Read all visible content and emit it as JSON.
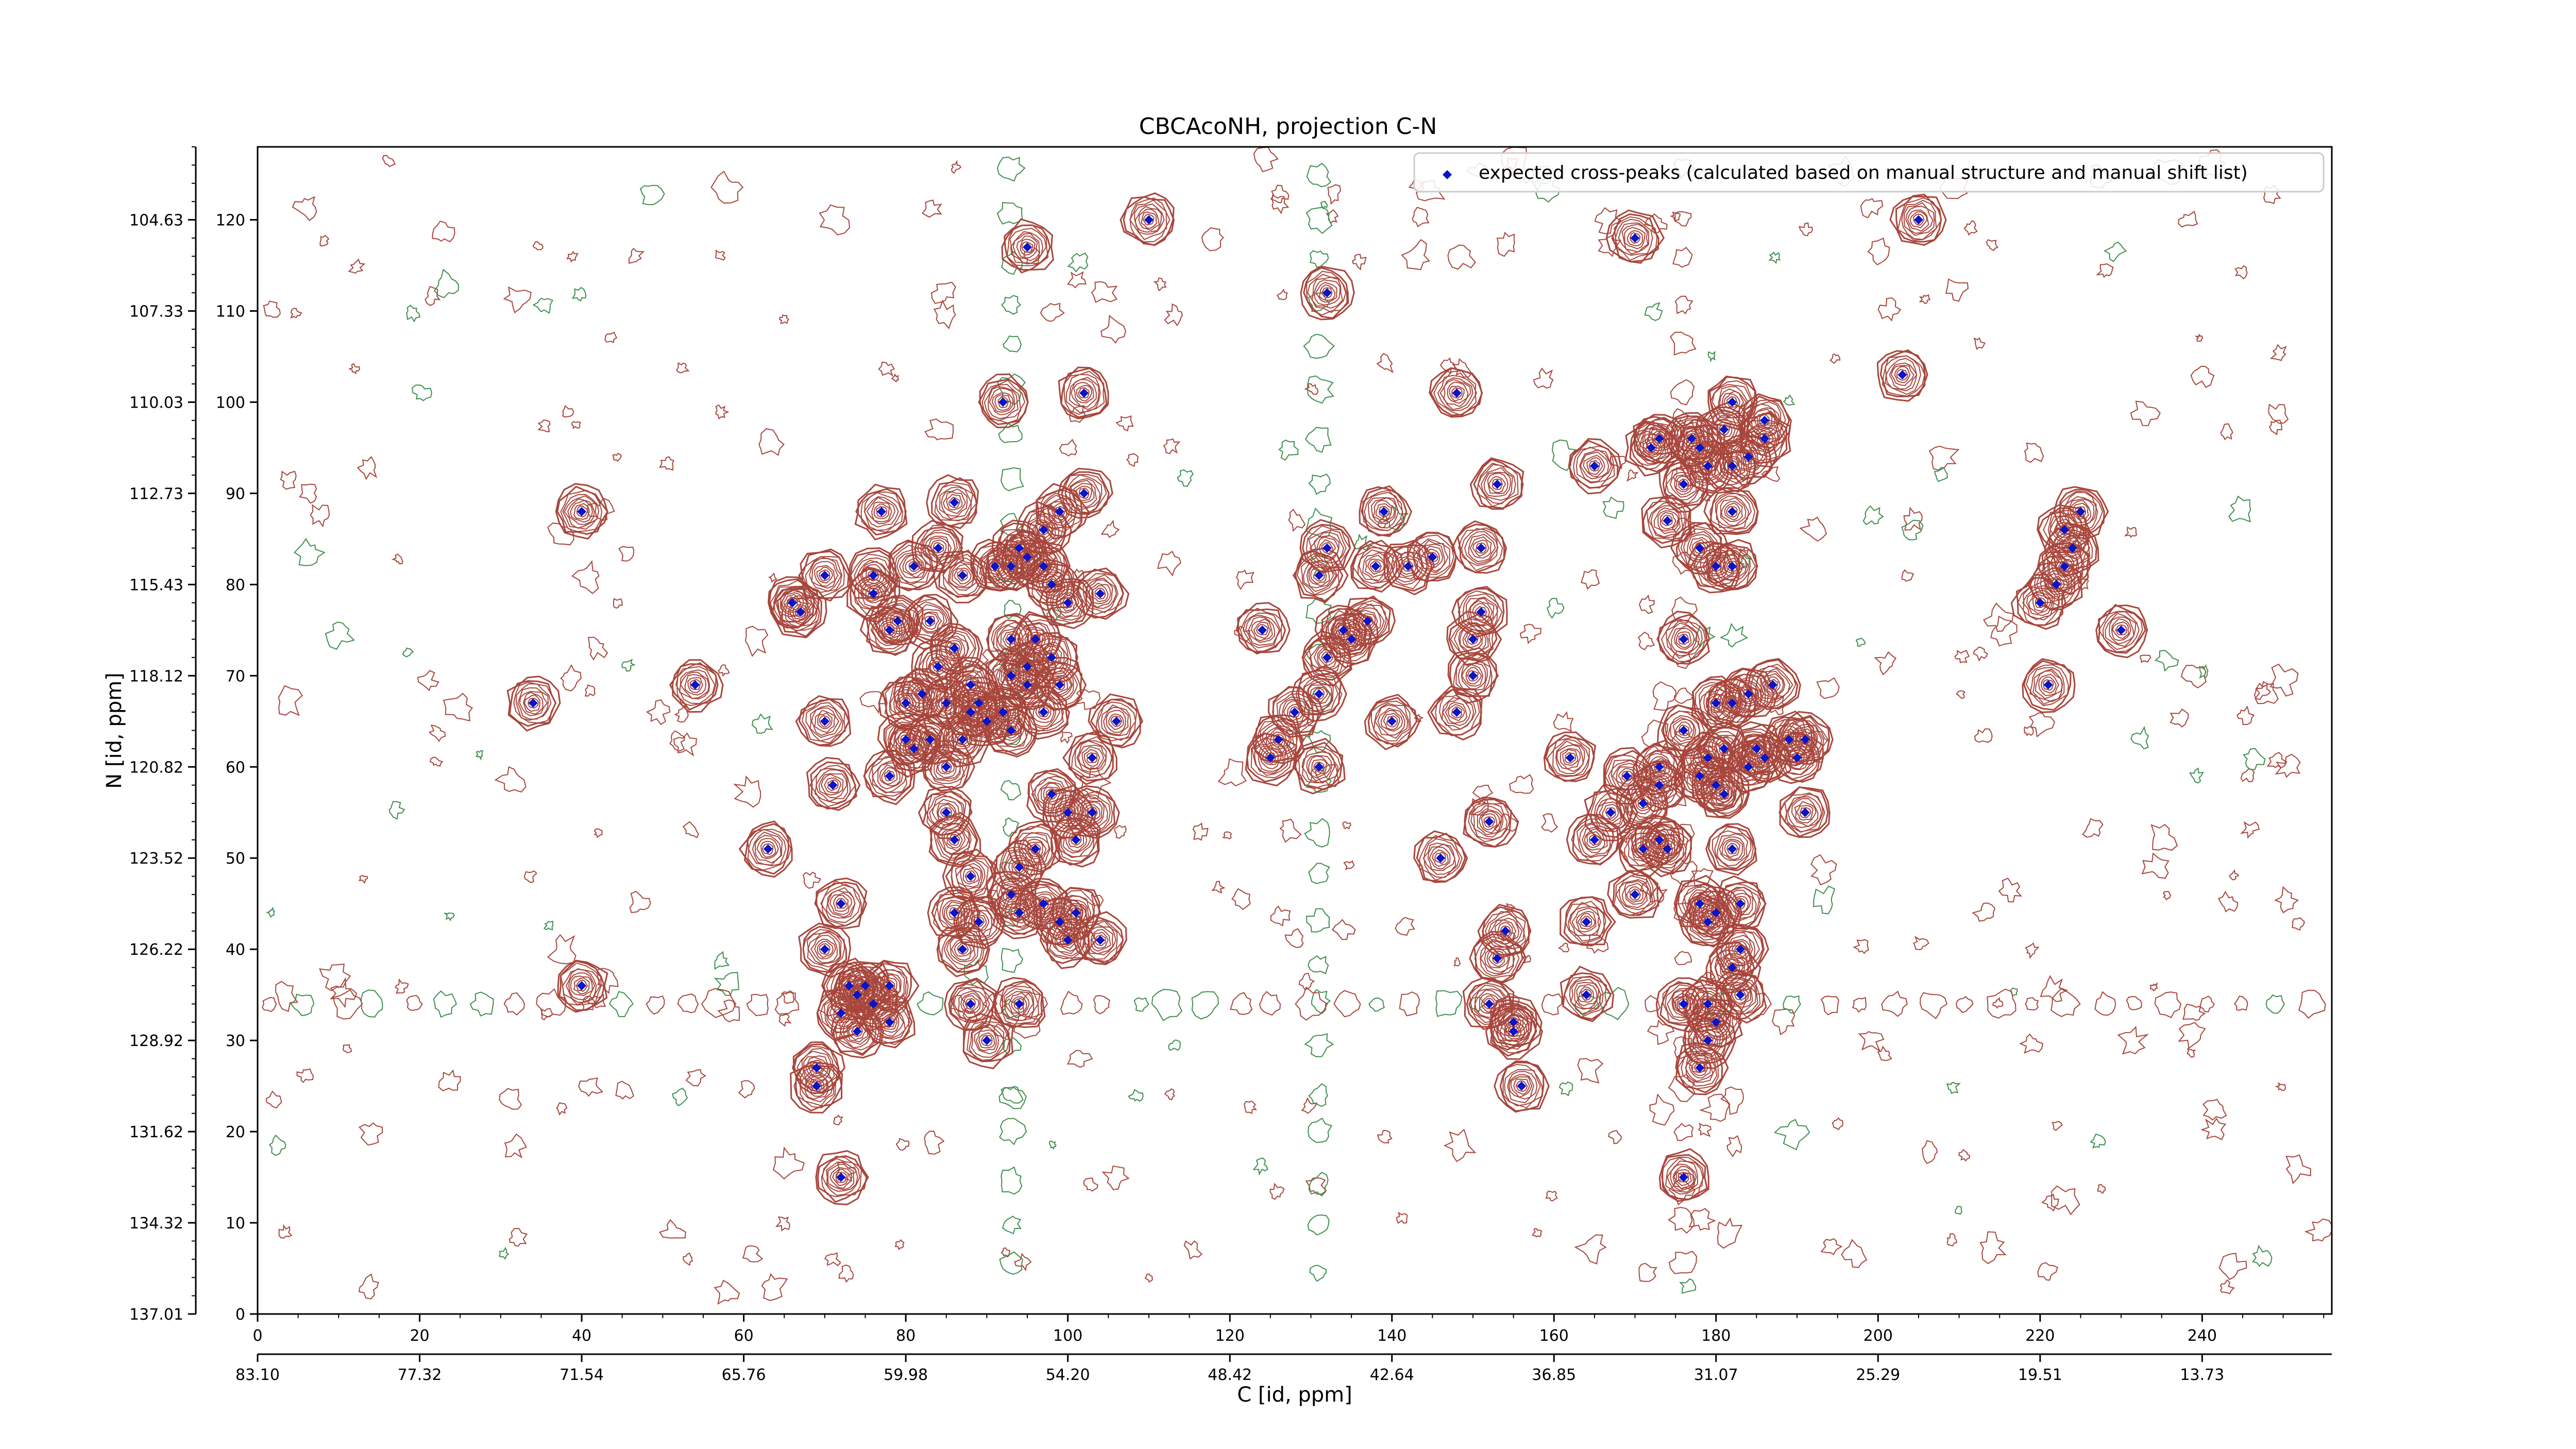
{
  "chart_data": {
    "type": "scatter",
    "title": "CBCAcoNH, projection C-N",
    "xlabel": "C [id, ppm]",
    "ylabel": "N [id, ppm]",
    "x_index_range": [
      0,
      256
    ],
    "y_index_range": [
      0,
      128
    ],
    "x_index_ticks": [
      "0",
      "20",
      "40",
      "60",
      "80",
      "100",
      "120",
      "140",
      "160",
      "180",
      "200",
      "220",
      "240"
    ],
    "x_ppm_ticks": [
      "83.10",
      "77.32",
      "71.54",
      "65.76",
      "59.98",
      "54.20",
      "48.42",
      "42.64",
      "36.85",
      "31.07",
      "25.29",
      "19.51",
      "13.73"
    ],
    "y_index_ticks": [
      "0",
      "10",
      "20",
      "30",
      "40",
      "50",
      "60",
      "70",
      "80",
      "90",
      "100",
      "110",
      "120"
    ],
    "y_ppm_ticks": [
      "137.01",
      "134.32",
      "131.62",
      "128.92",
      "126.22",
      "123.52",
      "120.82",
      "118.12",
      "115.43",
      "112.73",
      "110.03",
      "107.33",
      "104.63"
    ],
    "legend": {
      "placement": "top-right",
      "label": "expected cross-peaks (calculated based on manual structure and manual shift list)"
    },
    "colors": {
      "positive_contour": "#a8463c",
      "negative_contour": "#3f8f4f",
      "marker": "#0a14c8"
    },
    "series": [
      {
        "name": "expected cross-peaks (calculated based on manual structure and manual shift list)",
        "points": [
          [
            40,
            88
          ],
          [
            34,
            67
          ],
          [
            54,
            69
          ],
          [
            63,
            51
          ],
          [
            40,
            36
          ],
          [
            66,
            78
          ],
          [
            67,
            77
          ],
          [
            70,
            81
          ],
          [
            70,
            65
          ],
          [
            71,
            58
          ],
          [
            70,
            40
          ],
          [
            72,
            45
          ],
          [
            69,
            27
          ],
          [
            69,
            25
          ],
          [
            72,
            15
          ],
          [
            76,
            81
          ],
          [
            77,
            88
          ],
          [
            78,
            75
          ],
          [
            78,
            59
          ],
          [
            76,
            79
          ],
          [
            79,
            76
          ],
          [
            81,
            82
          ],
          [
            83,
            76
          ],
          [
            84,
            84
          ],
          [
            86,
            89
          ],
          [
            87,
            81
          ],
          [
            86,
            73
          ],
          [
            82,
            68
          ],
          [
            84,
            71
          ],
          [
            85,
            67
          ],
          [
            80,
            67
          ],
          [
            80,
            63
          ],
          [
            81,
            62
          ],
          [
            83,
            63
          ],
          [
            85,
            60
          ],
          [
            87,
            63
          ],
          [
            88,
            66
          ],
          [
            88,
            69
          ],
          [
            89,
            67
          ],
          [
            90,
            65
          ],
          [
            93,
            70
          ],
          [
            92,
            66
          ],
          [
            93,
            64
          ],
          [
            95,
            71
          ],
          [
            97,
            66
          ],
          [
            98,
            72
          ],
          [
            99,
            69
          ],
          [
            100,
            78
          ],
          [
            99,
            88
          ],
          [
            98,
            80
          ],
          [
            97,
            82
          ],
          [
            97,
            86
          ],
          [
            95,
            83
          ],
          [
            94,
            84
          ],
          [
            93,
            82
          ],
          [
            91,
            82
          ],
          [
            93,
            74
          ],
          [
            96,
            74
          ],
          [
            95,
            69
          ],
          [
            102,
            90
          ],
          [
            104,
            79
          ],
          [
            103,
            61
          ],
          [
            106,
            65
          ],
          [
            103,
            55
          ],
          [
            101,
            52
          ],
          [
            100,
            55
          ],
          [
            98,
            57
          ],
          [
            96,
            51
          ],
          [
            97,
            45
          ],
          [
            99,
            43
          ],
          [
            100,
            41
          ],
          [
            101,
            44
          ],
          [
            104,
            41
          ],
          [
            94,
            49
          ],
          [
            93,
            46
          ],
          [
            88,
            48
          ],
          [
            86,
            52
          ],
          [
            85,
            55
          ],
          [
            89,
            43
          ],
          [
            86,
            44
          ],
          [
            87,
            40
          ],
          [
            73,
            36
          ],
          [
            75,
            36
          ],
          [
            76,
            34
          ],
          [
            78,
            36
          ],
          [
            78,
            32
          ],
          [
            74,
            35
          ],
          [
            72,
            33
          ],
          [
            74,
            31
          ],
          [
            88,
            34
          ],
          [
            90,
            30
          ],
          [
            94,
            34
          ],
          [
            94,
            44
          ],
          [
            92,
            100
          ],
          [
            95,
            117
          ],
          [
            102,
            101
          ],
          [
            110,
            120
          ],
          [
            124,
            75
          ],
          [
            125,
            61
          ],
          [
            126,
            63
          ],
          [
            128,
            66
          ],
          [
            131,
            60
          ],
          [
            131,
            68
          ],
          [
            132,
            72
          ],
          [
            134,
            75
          ],
          [
            135,
            74
          ],
          [
            137,
            76
          ],
          [
            138,
            82
          ],
          [
            131,
            81
          ],
          [
            132,
            84
          ],
          [
            132,
            112
          ],
          [
            139,
            88
          ],
          [
            140,
            65
          ],
          [
            142,
            82
          ],
          [
            145,
            83
          ],
          [
            148,
            66
          ],
          [
            146,
            50
          ],
          [
            148,
            101
          ],
          [
            150,
            74
          ],
          [
            151,
            77
          ],
          [
            150,
            70
          ],
          [
            152,
            54
          ],
          [
            153,
            91
          ],
          [
            151,
            84
          ],
          [
            154,
            42
          ],
          [
            153,
            39
          ],
          [
            152,
            34
          ],
          [
            155,
            32
          ],
          [
            155,
            31
          ],
          [
            156,
            25
          ],
          [
            162,
            61
          ],
          [
            164,
            43
          ],
          [
            164,
            35
          ],
          [
            165,
            93
          ],
          [
            165,
            52
          ],
          [
            167,
            55
          ],
          [
            169,
            59
          ],
          [
            170,
            46
          ],
          [
            171,
            56
          ],
          [
            171,
            51
          ],
          [
            173,
            52
          ],
          [
            172,
            95
          ],
          [
            173,
            96
          ],
          [
            174,
            87
          ],
          [
            176,
            64
          ],
          [
            176,
            74
          ],
          [
            177,
            96
          ],
          [
            178,
            95
          ],
          [
            179,
            93
          ],
          [
            181,
            97
          ],
          [
            182,
            93
          ],
          [
            178,
            84
          ],
          [
            180,
            82
          ],
          [
            182,
            82
          ],
          [
            173,
            60
          ],
          [
            173,
            58
          ],
          [
            174,
            51
          ],
          [
            178,
            59
          ],
          [
            179,
            61
          ],
          [
            180,
            58
          ],
          [
            181,
            62
          ],
          [
            180,
            67
          ],
          [
            182,
            67
          ],
          [
            184,
            68
          ],
          [
            187,
            69
          ],
          [
            189,
            63
          ],
          [
            185,
            62
          ],
          [
            184,
            60
          ],
          [
            186,
            61
          ],
          [
            190,
            61
          ],
          [
            191,
            55
          ],
          [
            191,
            63
          ],
          [
            181,
            57
          ],
          [
            178,
            45
          ],
          [
            179,
            43
          ],
          [
            180,
            44
          ],
          [
            182,
            51
          ],
          [
            183,
            45
          ],
          [
            183,
            40
          ],
          [
            182,
            38
          ],
          [
            183,
            35
          ],
          [
            179,
            30
          ],
          [
            178,
            27
          ],
          [
            179,
            34
          ],
          [
            180,
            32
          ],
          [
            176,
            34
          ],
          [
            176,
            15
          ],
          [
            170,
            118
          ],
          [
            182,
            100
          ],
          [
            182,
            88
          ],
          [
            184,
            94
          ],
          [
            186,
            96
          ],
          [
            186,
            98
          ],
          [
            176,
            91
          ],
          [
            203,
            103
          ],
          [
            205,
            120
          ],
          [
            220,
            78
          ],
          [
            221,
            69
          ],
          [
            222,
            80
          ],
          [
            223,
            82
          ],
          [
            224,
            84
          ],
          [
            223,
            86
          ],
          [
            225,
            88
          ],
          [
            230,
            75
          ]
        ]
      }
    ]
  }
}
